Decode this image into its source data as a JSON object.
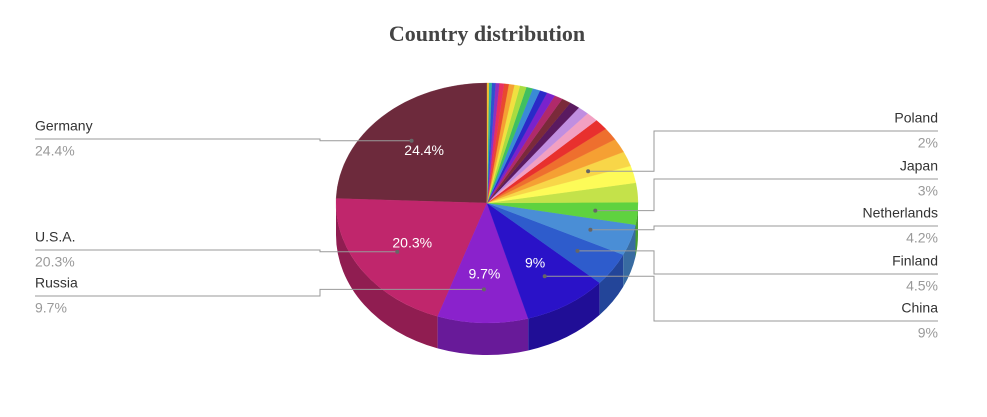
{
  "chart_data": {
    "type": "pie",
    "title": "Country distribution",
    "three_d": true,
    "categories": [
      "Germany",
      "U.S.A.",
      "Russia",
      "China",
      "Finland",
      "Netherlands",
      "Japan",
      null,
      null,
      "Poland",
      null,
      null,
      null,
      null,
      null,
      null,
      null,
      null,
      null,
      null,
      null,
      null,
      null,
      null,
      null,
      null,
      null,
      null,
      null,
      null,
      null
    ],
    "values": [
      24.4,
      20.3,
      9.7,
      9,
      4.5,
      4.2,
      3,
      2.6,
      2.3,
      2,
      1.9,
      1.7,
      1.5,
      1.3,
      1.2,
      1.1,
      1.0,
      0.9,
      0.9,
      0.8,
      0.8,
      0.7,
      0.7,
      0.6,
      0.6,
      0.5,
      0.5,
      0.4,
      0.4,
      0.3,
      0.2
    ],
    "value_labels": [
      "24.4%",
      "20.3%",
      "9.7%",
      "9%",
      "4.5%",
      "4.2%",
      "3%",
      null,
      null,
      "2%",
      null,
      null,
      null,
      null,
      null,
      null,
      null,
      null,
      null,
      null,
      null,
      null,
      null,
      null,
      null,
      null,
      null,
      null,
      null,
      null,
      null
    ],
    "colors": [
      "#6d2a3c",
      "#c0266c",
      "#8a22cc",
      "#2a12c8",
      "#2e5ccc",
      "#4a8ed6",
      "#5fd23f",
      "#c4e24a",
      "#fdfb58",
      "#f8d648",
      "#f5a033",
      "#ee6f2e",
      "#e8302e",
      "#f2a0c2",
      "#c08ee0",
      "#5a1a60",
      "#7a2a3a",
      "#b02a6a",
      "#7a22cc",
      "#2a2ac8",
      "#3a8ad6",
      "#40c060",
      "#a8dc40",
      "#f0e040",
      "#f5a033",
      "#e84a2e",
      "#e83060",
      "#9030c0",
      "#3050d0",
      "#30b0a0",
      "#f0c030"
    ]
  }
}
